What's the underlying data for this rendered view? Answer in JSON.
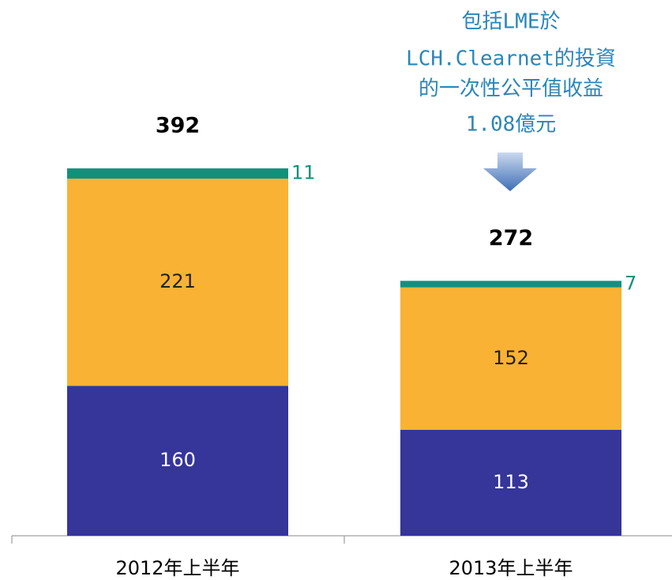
{
  "chart_data": {
    "type": "stacked_bar",
    "categories": [
      "2012年上半年",
      "2013年上半年"
    ],
    "series": [
      {
        "color": "#35359a",
        "values": [
          160,
          113
        ]
      },
      {
        "color": "#f9b233",
        "values": [
          221,
          152
        ]
      },
      {
        "color": "#12907a",
        "values": [
          11,
          7
        ]
      }
    ],
    "totals": [
      392,
      272
    ],
    "annotation": [
      "包括LME於",
      "LCH.Clearnet的投資",
      "的一次性公平值收益",
      "1.08億元"
    ]
  }
}
